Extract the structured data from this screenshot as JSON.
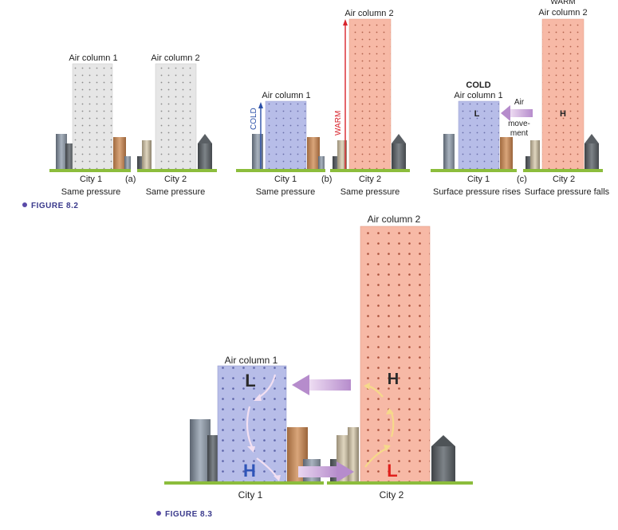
{
  "figure_8_2": {
    "caption": "FIGURE 8.2",
    "panel_a": {
      "tag": "(a)",
      "col1_label": "Air column 1",
      "col2_label": "Air column 2",
      "city1": "City 1",
      "city2": "City 2",
      "city1_note": "Same pressure",
      "city2_note": "Same pressure"
    },
    "panel_b": {
      "tag": "(b)",
      "col1_label": "Air column 1",
      "col2_label": "Air column 2",
      "cold_label": "COLD",
      "warm_label": "WARM",
      "city1": "City 1",
      "city2": "City 2",
      "city1_note": "Same pressure",
      "city2_note": "Same pressure"
    },
    "panel_c": {
      "tag": "(c)",
      "col1_top": "COLD",
      "col1_label": "Air column 1",
      "col2_top": "WARM",
      "col2_label": "Air column 2",
      "low_letter": "L",
      "high_letter": "H",
      "air_movement": [
        "Air",
        "move-",
        "ment"
      ],
      "city1": "City 1",
      "city2": "City 2",
      "city1_note": "Surface pressure rises",
      "city2_note": "Surface pressure falls"
    }
  },
  "figure_8_3": {
    "caption": "FIGURE 8.3",
    "col1_label": "Air column 1",
    "col2_label": "Air column 2",
    "col1_upper": "L",
    "col1_lower": "H",
    "col2_upper": "H",
    "col2_lower": "L",
    "city1": "City 1",
    "city2": "City 2"
  },
  "colors": {
    "neutral_column": "#e6e6e6",
    "cold_column": "#b7bde8",
    "warm_column": "#f7b9a6",
    "ground": "#8cbd3c",
    "cold_arrow": "#2a4fa8",
    "warm_arrow": "#d8242c",
    "high_blue": "#2f55b8",
    "low_red": "#e0201c",
    "airflow": "#c6a0d8"
  }
}
